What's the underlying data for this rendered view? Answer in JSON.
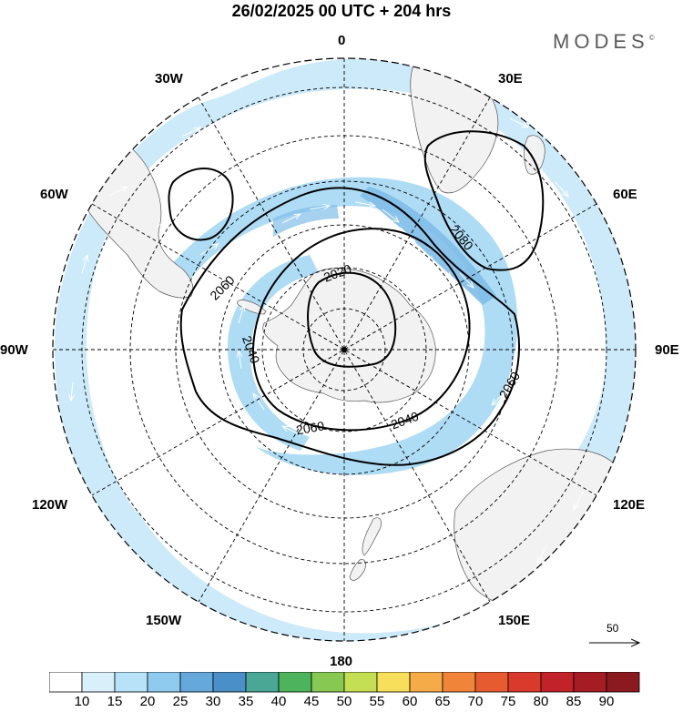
{
  "title": "26/02/2025  00 UTC  + 204 hrs",
  "logo": {
    "text": "MODES",
    "mark": "©"
  },
  "map": {
    "projection": "south-polar-stereographic",
    "longitude_labels": [
      "0",
      "30E",
      "60E",
      "90E",
      "120E",
      "150E",
      "180",
      "150W",
      "120W",
      "90W",
      "60W",
      "30W"
    ],
    "contour_labels": [
      "2020",
      "2040",
      "2040",
      "2060",
      "2060",
      "2060",
      "2080"
    ],
    "wind_vectors": true,
    "reference_vector": {
      "label": "50",
      "units": "wind speed"
    }
  },
  "colorbar": {
    "ticks": [
      "10",
      "15",
      "20",
      "25",
      "30",
      "35",
      "40",
      "45",
      "50",
      "55",
      "60",
      "65",
      "70",
      "75",
      "80",
      "85",
      "90"
    ],
    "colors": [
      "#ffffff",
      "#d9f0fb",
      "#b8e2f7",
      "#8ecbee",
      "#64a8dc",
      "#4b8fc8",
      "#4aa796",
      "#4db35c",
      "#86c851",
      "#c4df53",
      "#f7df5b",
      "#f5ac48",
      "#f0853a",
      "#e65c30",
      "#d93a2c",
      "#c2222a",
      "#a51c24",
      "#8a1a1f"
    ]
  },
  "colors": {
    "land": "#f2f2f2",
    "jet_light": "#cdeafa",
    "jet_mid": "#9fd3f3",
    "jet_dark": "#78b8e6",
    "contour": "#000000"
  }
}
